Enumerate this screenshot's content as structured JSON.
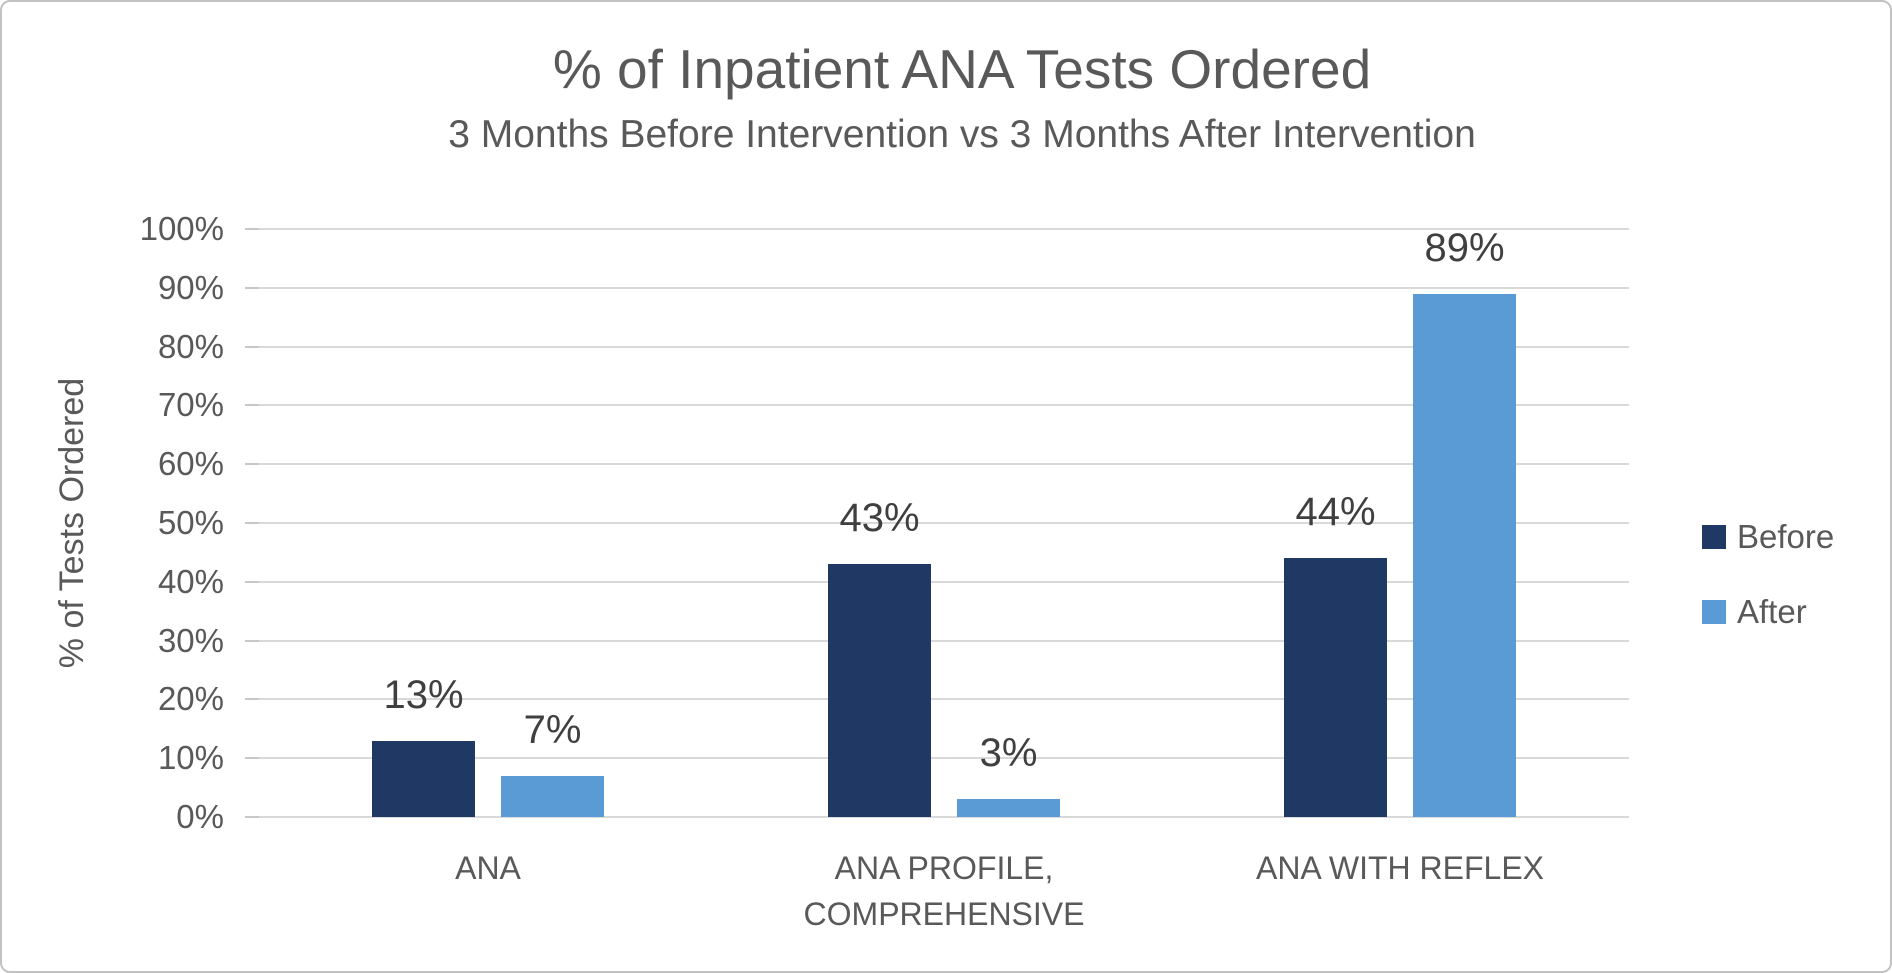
{
  "chart_data": {
    "type": "bar",
    "title": "% of Inpatient ANA Tests Ordered",
    "subtitle": "3 Months Before Intervention vs 3 Months After Intervention",
    "ylabel": "% of Tests Ordered",
    "xlabel": "",
    "categories": [
      "ANA",
      "ANA PROFILE, COMPREHENSIVE",
      "ANA WITH REFLEX"
    ],
    "category_labels": [
      "ANA",
      "ANA PROFILE,\nCOMPREHENSIVE",
      "ANA WITH REFLEX"
    ],
    "series": [
      {
        "name": "Before",
        "color": "#1F3864",
        "values": [
          13,
          43,
          44
        ],
        "labels": [
          "13%",
          "43%",
          "44%"
        ]
      },
      {
        "name": "After",
        "color": "#5B9BD5",
        "values": [
          7,
          3,
          89
        ],
        "labels": [
          "7%",
          "3%",
          "89%"
        ]
      }
    ],
    "ylim": [
      0,
      100
    ],
    "y_tick_step": 10,
    "y_tick_suffix": "%",
    "grid": "horizontal",
    "legend_position": "right",
    "colors": {
      "axis_text": "#595959",
      "data_label_text": "#3F3F3F",
      "gridline": "#D9D9D9",
      "tick": "#C8C8C8",
      "background": "#FFFFFF",
      "border": "#C2C2C2"
    }
  }
}
